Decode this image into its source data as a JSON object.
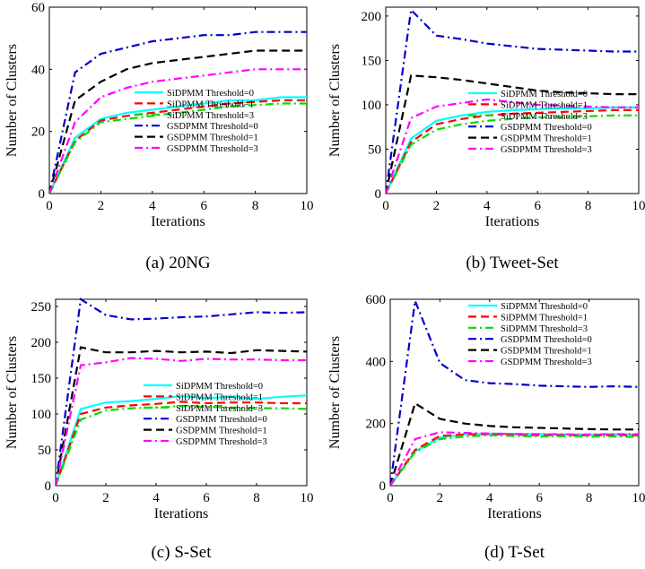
{
  "chart_data": [
    {
      "type": "line",
      "caption": "(a) 20NG",
      "xlabel": "Iterations",
      "ylabel": "Number of Clusters",
      "xlim": [
        0,
        10
      ],
      "ylim": [
        0,
        60
      ],
      "xticks": [
        "0",
        "2",
        "4",
        "6",
        "8",
        "10"
      ],
      "yticks": [
        "0",
        "20",
        "40",
        "60"
      ],
      "legend_position": "bottom-right",
      "x": [
        0,
        1,
        2,
        3,
        4,
        5,
        6,
        7,
        8,
        9,
        10
      ],
      "series": [
        {
          "name": "SiDPMM Threshold=0",
          "color": "#00ffff",
          "dash": "solid",
          "values": [
            0,
            18,
            24,
            26,
            27,
            28,
            29,
            30,
            30,
            31,
            31
          ]
        },
        {
          "name": "SiDPMM Threshold=1",
          "color": "#ff0000",
          "dash": "dashed",
          "values": [
            0,
            17,
            23.5,
            25,
            26,
            27,
            28,
            29,
            29.5,
            30,
            30
          ]
        },
        {
          "name": "SiDPMM Threshold=3",
          "color": "#00dd00",
          "dash": "dashdot",
          "values": [
            0,
            16.5,
            23,
            24,
            25,
            26,
            27,
            28,
            28.5,
            29,
            29
          ]
        },
        {
          "name": "GSDPMM Threshold=0",
          "color": "#0000cc",
          "dash": "dashdot",
          "values": [
            0,
            39,
            45,
            47,
            49,
            50,
            51,
            51,
            52,
            52,
            52
          ]
        },
        {
          "name": "GSDPMM Threshold=1",
          "color": "#000000",
          "dash": "dashed",
          "values": [
            0,
            30,
            36,
            40,
            42,
            43,
            44,
            45,
            46,
            46,
            46
          ]
        },
        {
          "name": "GSDPMM Threshold=3",
          "color": "#ff00ff",
          "dash": "dashdot",
          "values": [
            0,
            23,
            31,
            34,
            36,
            37,
            38,
            39,
            40,
            40,
            40
          ]
        }
      ]
    },
    {
      "type": "line",
      "caption": "(b) Tweet-Set",
      "xlabel": "Iterations",
      "ylabel": "Number of Clusters",
      "xlim": [
        0,
        10
      ],
      "ylim": [
        0,
        210
      ],
      "xticks": [
        "0",
        "2",
        "4",
        "6",
        "8",
        "10"
      ],
      "yticks": [
        "0",
        "50",
        "100",
        "150",
        "200"
      ],
      "legend_position": "bottom-right",
      "x": [
        0,
        1,
        2,
        3,
        4,
        5,
        6,
        7,
        8,
        9,
        10
      ],
      "series": [
        {
          "name": "SiDPMM Threshold=0",
          "color": "#00ffff",
          "dash": "solid",
          "values": [
            0,
            62,
            82,
            88,
            92,
            94,
            95,
            96,
            96,
            97,
            97
          ]
        },
        {
          "name": "SiDPMM Threshold=1",
          "color": "#ff0000",
          "dash": "dashed",
          "values": [
            0,
            58,
            78,
            84,
            88,
            90,
            91,
            92,
            93,
            94,
            94
          ]
        },
        {
          "name": "SiDPMM Threshold=3",
          "color": "#00dd00",
          "dash": "dashdot",
          "values": [
            0,
            55,
            72,
            78,
            82,
            84,
            86,
            86,
            87,
            88,
            88
          ]
        },
        {
          "name": "GSDPMM Threshold=0",
          "color": "#0000cc",
          "dash": "dashdot",
          "values": [
            0,
            207,
            178,
            174,
            169,
            166,
            163,
            162,
            161,
            160,
            160
          ]
        },
        {
          "name": "GSDPMM Threshold=1",
          "color": "#000000",
          "dash": "dashed",
          "values": [
            0,
            133,
            131,
            128,
            124,
            120,
            116,
            114,
            113,
            112,
            112
          ]
        },
        {
          "name": "GSDPMM Threshold=3",
          "color": "#ff00ff",
          "dash": "dashdot",
          "values": [
            0,
            85,
            98,
            102,
            106,
            103,
            100,
            99,
            98,
            97,
            97
          ]
        }
      ]
    },
    {
      "type": "line",
      "caption": "(c) S-Set",
      "xlabel": "Iterations",
      "ylabel": "Number of Clusters",
      "xlim": [
        0,
        10
      ],
      "ylim": [
        0,
        260
      ],
      "xticks": [
        "0",
        "2",
        "4",
        "6",
        "8",
        "10"
      ],
      "yticks": [
        "0",
        "50",
        "100",
        "150",
        "200",
        "250"
      ],
      "legend_position": "bottom-right",
      "x": [
        0,
        1,
        2,
        3,
        4,
        5,
        6,
        7,
        8,
        9,
        10
      ],
      "series": [
        {
          "name": "SiDPMM Threshold=0",
          "color": "#00ffff",
          "dash": "solid",
          "values": [
            0,
            107,
            116,
            118,
            121,
            125,
            122,
            124,
            121,
            124,
            126
          ]
        },
        {
          "name": "SiDPMM Threshold=1",
          "color": "#ff0000",
          "dash": "dashed",
          "values": [
            0,
            100,
            109,
            112,
            114,
            117,
            115,
            116,
            116,
            115,
            115
          ]
        },
        {
          "name": "SiDPMM Threshold=3",
          "color": "#00dd00",
          "dash": "dashdot",
          "values": [
            0,
            92,
            105,
            108,
            109,
            111,
            110,
            109,
            108,
            108,
            107
          ]
        },
        {
          "name": "GSDPMM Threshold=0",
          "color": "#0000cc",
          "dash": "dashdot",
          "values": [
            0,
            260,
            238,
            232,
            233,
            235,
            236,
            239,
            242,
            241,
            242
          ]
        },
        {
          "name": "GSDPMM Threshold=1",
          "color": "#000000",
          "dash": "dashed",
          "values": [
            0,
            193,
            186,
            186,
            188,
            186,
            187,
            185,
            189,
            188,
            187
          ]
        },
        {
          "name": "GSDPMM Threshold=3",
          "color": "#ff00ff",
          "dash": "dashdot",
          "values": [
            0,
            168,
            172,
            178,
            177,
            174,
            177,
            176,
            176,
            175,
            175
          ]
        }
      ]
    },
    {
      "type": "line",
      "caption": "(d) T-Set",
      "xlabel": "Iterations",
      "ylabel": "Number of Clusters",
      "xlim": [
        0,
        10
      ],
      "ylim": [
        0,
        600
      ],
      "xticks": [
        "0",
        "2",
        "4",
        "6",
        "8",
        "10"
      ],
      "yticks": [
        "0",
        "200",
        "400",
        "600"
      ],
      "legend_position": "top-right",
      "x": [
        0,
        1,
        2,
        3,
        4,
        5,
        6,
        7,
        8,
        9,
        10
      ],
      "series": [
        {
          "name": "SiDPMM Threshold=0",
          "color": "#00ffff",
          "dash": "solid",
          "values": [
            0,
            110,
            155,
            165,
            168,
            167,
            166,
            165,
            164,
            166,
            165
          ]
        },
        {
          "name": "SiDPMM Threshold=1",
          "color": "#ff0000",
          "dash": "dashed",
          "values": [
            0,
            115,
            160,
            165,
            166,
            164,
            162,
            163,
            162,
            163,
            162
          ]
        },
        {
          "name": "SiDPMM Threshold=3",
          "color": "#00dd00",
          "dash": "dashdot",
          "values": [
            0,
            108,
            150,
            158,
            162,
            160,
            158,
            159,
            158,
            158,
            157
          ]
        },
        {
          "name": "GSDPMM Threshold=0",
          "color": "#0000cc",
          "dash": "dashdot",
          "values": [
            0,
            595,
            395,
            340,
            330,
            327,
            322,
            320,
            318,
            320,
            318
          ]
        },
        {
          "name": "GSDPMM Threshold=1",
          "color": "#000000",
          "dash": "dashed",
          "values": [
            0,
            265,
            215,
            200,
            192,
            188,
            186,
            184,
            182,
            181,
            181
          ]
        },
        {
          "name": "GSDPMM Threshold=3",
          "color": "#ff00ff",
          "dash": "dashdot",
          "values": [
            0,
            150,
            172,
            170,
            168,
            166,
            166,
            165,
            165,
            166,
            166
          ]
        }
      ]
    }
  ]
}
